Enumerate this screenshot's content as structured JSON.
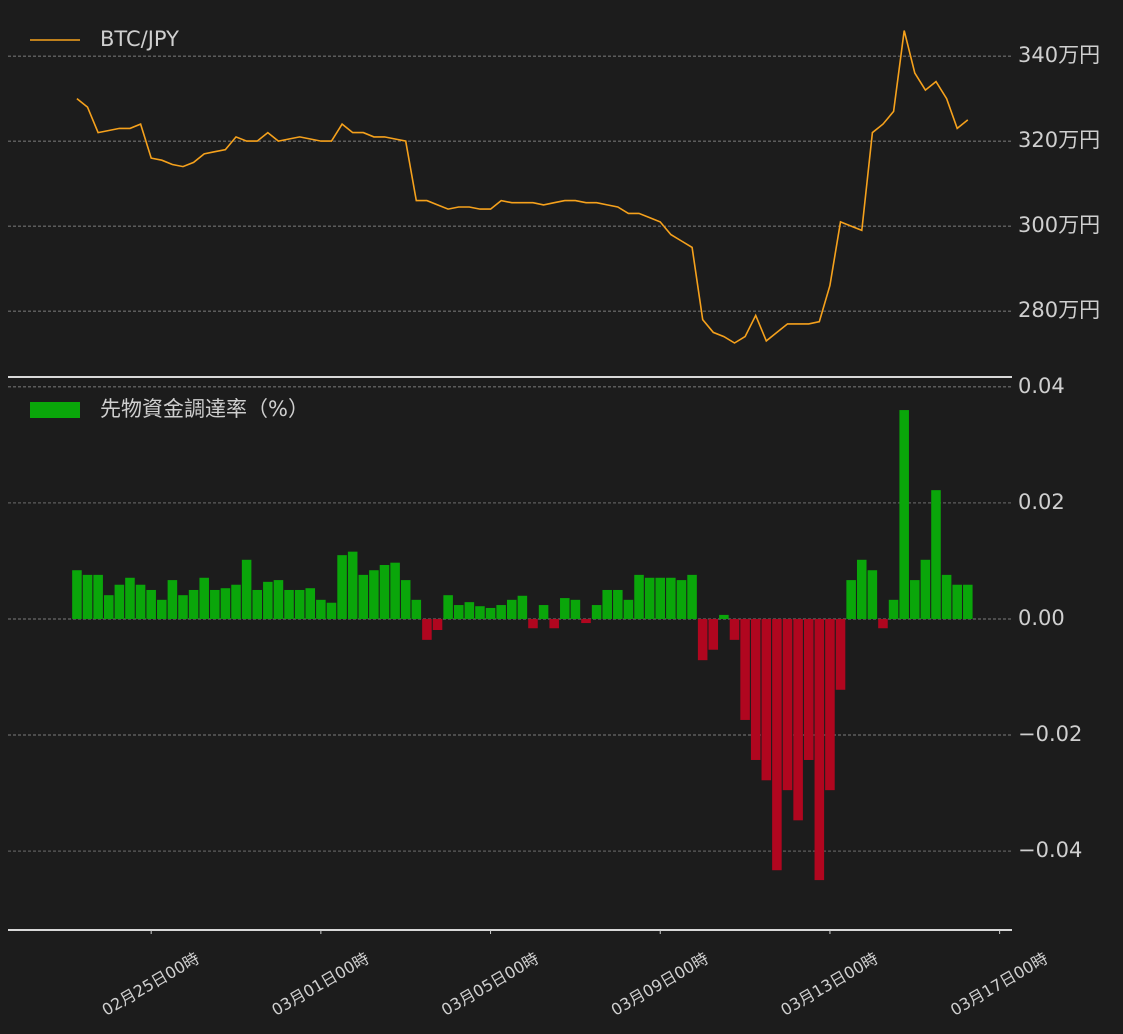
{
  "chart_data": [
    {
      "type": "line",
      "x": [
        "02-23 06:00",
        "02-23 12:00",
        "02-23 18:00",
        "02-24 00:00",
        "02-24 06:00",
        "02-24 12:00",
        "02-24 18:00",
        "02-25 00:00",
        "02-25 06:00",
        "02-25 12:00",
        "02-25 18:00",
        "02-26 00:00",
        "02-26 06:00",
        "02-26 12:00",
        "02-26 18:00",
        "02-27 00:00",
        "02-27 06:00",
        "02-27 12:00",
        "02-27 18:00",
        "02-28 00:00",
        "02-28 06:00",
        "02-28 12:00",
        "02-28 18:00",
        "03-01 00:00",
        "03-01 06:00",
        "03-01 12:00",
        "03-01 18:00",
        "03-02 00:00",
        "03-02 06:00",
        "03-02 12:00",
        "03-02 18:00",
        "03-03 00:00",
        "03-03 06:00",
        "03-03 12:00",
        "03-03 18:00",
        "03-04 00:00",
        "03-04 06:00",
        "03-04 12:00",
        "03-04 18:00",
        "03-05 00:00",
        "03-05 06:00",
        "03-05 12:00",
        "03-05 18:00",
        "03-06 00:00",
        "03-06 06:00",
        "03-06 12:00",
        "03-06 18:00",
        "03-07 00:00",
        "03-07 06:00",
        "03-07 12:00",
        "03-07 18:00",
        "03-08 00:00",
        "03-08 06:00",
        "03-08 12:00",
        "03-08 18:00",
        "03-09 00:00",
        "03-09 06:00",
        "03-09 12:00",
        "03-09 18:00",
        "03-10 00:00",
        "03-10 06:00",
        "03-10 12:00",
        "03-10 18:00",
        "03-11 00:00",
        "03-11 06:00",
        "03-11 12:00",
        "03-11 18:00",
        "03-12 00:00",
        "03-12 06:00",
        "03-12 12:00",
        "03-12 18:00",
        "03-13 00:00",
        "03-13 06:00",
        "03-13 12:00",
        "03-13 18:00",
        "03-14 00:00",
        "03-14 06:00",
        "03-14 12:00",
        "03-14 18:00",
        "03-15 00:00",
        "03-15 06:00",
        "03-15 12:00",
        "03-15 18:00",
        "03-16 00:00",
        "03-16 06:00"
      ],
      "series": [
        {
          "name": "BTC/JPY",
          "color": "#f5a11c",
          "values": [
            330,
            328,
            322,
            322.5,
            323,
            323,
            324,
            316,
            315.5,
            314.5,
            314,
            315,
            317,
            317.5,
            318,
            321,
            320,
            320,
            322,
            320,
            320.5,
            321,
            320.5,
            320,
            320,
            324,
            322,
            322,
            321,
            321,
            320.5,
            320,
            306,
            306,
            305,
            304,
            304.5,
            304.5,
            304,
            304,
            306,
            305.5,
            305.5,
            305.5,
            305,
            305.5,
            306,
            306,
            305.5,
            305.5,
            305,
            304.5,
            303,
            303,
            302,
            301,
            298,
            296.5,
            295,
            278,
            275,
            274,
            272.5,
            274,
            279,
            273,
            275,
            277,
            277,
            277,
            277.5,
            286,
            301,
            300,
            299,
            322,
            324,
            327,
            346,
            336,
            332,
            334,
            330,
            323,
            325
          ]
        }
      ],
      "xlim": [
        "02-21 15:00",
        "03-17 07:00"
      ],
      "ylim": [
        264.5,
        353.2
      ],
      "yticks": [
        {
          "value": 280,
          "label": "280万円"
        },
        {
          "value": 300,
          "label": "300万円"
        },
        {
          "value": 320,
          "label": "320万円"
        },
        {
          "value": 340,
          "label": "340万円"
        }
      ],
      "grid": true
    },
    {
      "type": "bar",
      "x": [
        "02-23 06:00",
        "02-23 12:00",
        "02-23 18:00",
        "02-24 00:00",
        "02-24 06:00",
        "02-24 12:00",
        "02-24 18:00",
        "02-25 00:00",
        "02-25 06:00",
        "02-25 12:00",
        "02-25 18:00",
        "02-26 00:00",
        "02-26 06:00",
        "02-26 12:00",
        "02-26 18:00",
        "02-27 00:00",
        "02-27 06:00",
        "02-27 12:00",
        "02-27 18:00",
        "02-28 00:00",
        "02-28 06:00",
        "02-28 12:00",
        "02-28 18:00",
        "03-01 00:00",
        "03-01 06:00",
        "03-01 12:00",
        "03-01 18:00",
        "03-02 00:00",
        "03-02 06:00",
        "03-02 12:00",
        "03-02 18:00",
        "03-03 00:00",
        "03-03 06:00",
        "03-03 12:00",
        "03-03 18:00",
        "03-04 00:00",
        "03-04 06:00",
        "03-04 12:00",
        "03-04 18:00",
        "03-05 00:00",
        "03-05 06:00",
        "03-05 12:00",
        "03-05 18:00",
        "03-06 00:00",
        "03-06 06:00",
        "03-06 12:00",
        "03-06 18:00",
        "03-07 00:00",
        "03-07 06:00",
        "03-07 12:00",
        "03-07 18:00",
        "03-08 00:00",
        "03-08 06:00",
        "03-08 12:00",
        "03-08 18:00",
        "03-09 00:00",
        "03-09 06:00",
        "03-09 12:00",
        "03-09 18:00",
        "03-10 00:00",
        "03-10 06:00",
        "03-10 12:00",
        "03-10 18:00",
        "03-11 00:00",
        "03-11 06:00",
        "03-11 12:00",
        "03-11 18:00",
        "03-12 00:00",
        "03-12 06:00",
        "03-12 12:00",
        "03-12 18:00",
        "03-13 00:00",
        "03-13 06:00",
        "03-13 12:00",
        "03-13 18:00",
        "03-14 00:00",
        "03-14 06:00",
        "03-14 12:00",
        "03-14 18:00",
        "03-15 00:00",
        "03-15 06:00",
        "03-15 12:00",
        "03-15 18:00",
        "03-16 00:00",
        "03-16 06:00"
      ],
      "series": [
        {
          "name": "先物資金調達率（%）",
          "color": "#0aa60a",
          "negative_color": "#b0061f",
          "values": [
            0.0084,
            0.0076,
            0.0076,
            0.0041,
            0.0059,
            0.0071,
            0.0059,
            0.005,
            0.0033,
            0.0067,
            0.0041,
            0.005,
            0.0071,
            0.005,
            0.0053,
            0.0059,
            0.0102,
            0.005,
            0.0064,
            0.0067,
            0.005,
            0.005,
            0.0053,
            0.0033,
            0.0028,
            0.011,
            0.0116,
            0.0076,
            0.0084,
            0.0093,
            0.0097,
            0.0067,
            0.0033,
            -0.0036,
            -0.0019,
            0.0041,
            0.0024,
            0.0029,
            0.0022,
            0.0019,
            0.0024,
            0.0033,
            0.004,
            -0.0016,
            0.0024,
            -0.0016,
            0.0036,
            0.0033,
            -0.0007,
            0.0024,
            0.005,
            0.005,
            0.0033,
            0.0076,
            0.0071,
            0.0071,
            0.0071,
            0.0067,
            0.0076,
            -0.0071,
            -0.0053,
            0.0007,
            -0.0036,
            -0.0174,
            -0.0243,
            -0.0278,
            -0.0433,
            -0.0295,
            -0.0347,
            -0.0243,
            -0.045,
            -0.0295,
            -0.0122,
            0.0067,
            0.0102,
            0.0084,
            -0.0016,
            0.0033,
            0.036,
            0.0067,
            0.0102,
            0.0222,
            0.0076,
            0.0059,
            0.0059
          ]
        }
      ],
      "xlim": [
        "02-21 15:00",
        "03-17 07:00"
      ],
      "xticks": [
        {
          "value": "02-25 00:00",
          "label": "02月25日00時"
        },
        {
          "value": "03-01 00:00",
          "label": "03月01日00時"
        },
        {
          "value": "03-05 00:00",
          "label": "03月05日00時"
        },
        {
          "value": "03-09 00:00",
          "label": "03月09日00時"
        },
        {
          "value": "03-13 00:00",
          "label": "03月13日00時"
        },
        {
          "value": "03-17 00:00",
          "label": "03月17日00時"
        }
      ],
      "ylim": [
        -0.0536,
        0.0417
      ],
      "yticks": [
        {
          "value": -0.04,
          "label": "−0.04"
        },
        {
          "value": -0.02,
          "label": "−0.02"
        },
        {
          "value": 0,
          "label": "0.00"
        },
        0.02,
        0.04
      ],
      "grid": true
    }
  ]
}
